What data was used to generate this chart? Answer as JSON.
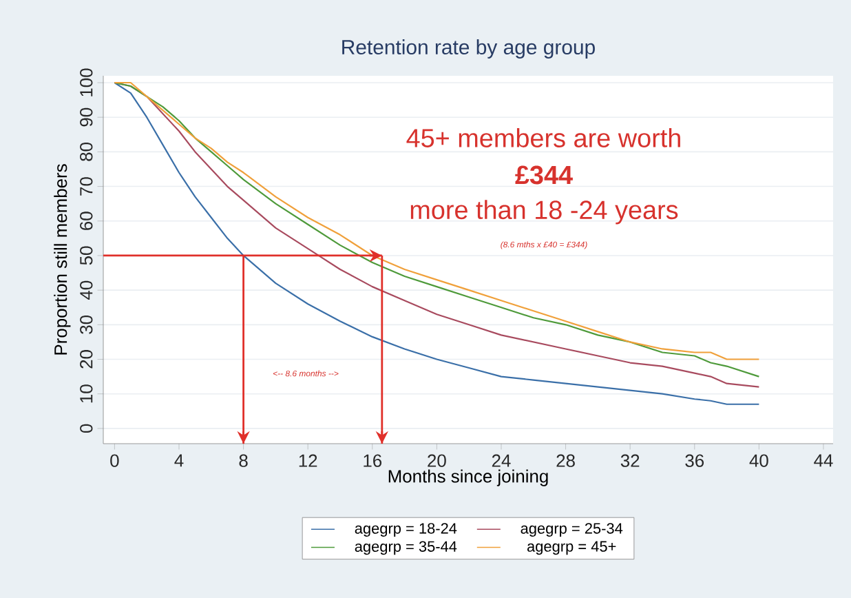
{
  "chart_data": {
    "type": "line",
    "title": "Retention rate by age group",
    "xlabel": "Months since joining",
    "ylabel": "Proportion still members",
    "x": [
      0,
      1,
      2,
      3,
      4,
      5,
      6,
      7,
      8,
      10,
      12,
      14,
      16,
      18,
      20,
      22,
      24,
      26,
      28,
      30,
      32,
      34,
      36,
      37,
      38,
      40
    ],
    "series": [
      {
        "name": "agegrp = 18-24",
        "color": "#3a6fa8",
        "values": [
          100,
          97,
          90,
          82,
          74,
          67,
          61,
          55,
          50,
          42,
          36,
          31,
          26.5,
          23,
          20,
          17.5,
          15,
          14,
          13,
          12,
          11,
          10,
          8.5,
          8,
          7,
          7
        ]
      },
      {
        "name": "agegrp = 25-34",
        "color": "#a84a5e",
        "values": [
          100,
          99,
          96,
          91,
          86,
          80,
          75,
          70,
          66,
          58,
          52,
          46,
          41,
          37,
          33,
          30,
          27,
          25,
          23,
          21,
          19,
          18,
          16,
          15,
          13,
          12
        ]
      },
      {
        "name": "agegrp = 35-44",
        "color": "#4e9a3a",
        "values": [
          100,
          99,
          96,
          93,
          89,
          84,
          80,
          76,
          72,
          65,
          59,
          53,
          48,
          44,
          41,
          38,
          35,
          32,
          30,
          27,
          25,
          22,
          21,
          19,
          18,
          15
        ]
      },
      {
        "name": "agegrp = 45+",
        "color": "#f0a03a",
        "values": [
          100,
          100,
          96,
          92,
          88,
          84,
          81,
          77,
          74,
          67,
          61,
          56,
          50,
          46,
          43,
          40,
          37,
          34,
          31,
          28,
          25,
          23,
          22,
          22,
          20,
          20
        ]
      }
    ],
    "xlim": [
      -0.7,
      44.6
    ],
    "ylim": [
      -4.4,
      102
    ],
    "xticks": [
      0,
      4,
      8,
      12,
      16,
      20,
      24,
      28,
      32,
      36,
      40,
      44
    ],
    "yticks": [
      0,
      10,
      20,
      30,
      40,
      50,
      60,
      70,
      80,
      90,
      100
    ],
    "grid": "y",
    "legend": "bottom",
    "line_style": "solid",
    "marker": "none",
    "ref_lines": [
      {
        "axis": "y",
        "value": 50,
        "color": "#e0302a"
      },
      {
        "axis": "x",
        "value": 8,
        "color": "#e0302a"
      },
      {
        "axis": "x",
        "value": 16.6,
        "color": "#e0302a"
      }
    ],
    "annotations": [
      "45+ members are worth",
      "£344",
      "more than 18 -24 years",
      "(8.6 mths x £40 = £344)",
      "<-- 8.6 months -->"
    ]
  }
}
